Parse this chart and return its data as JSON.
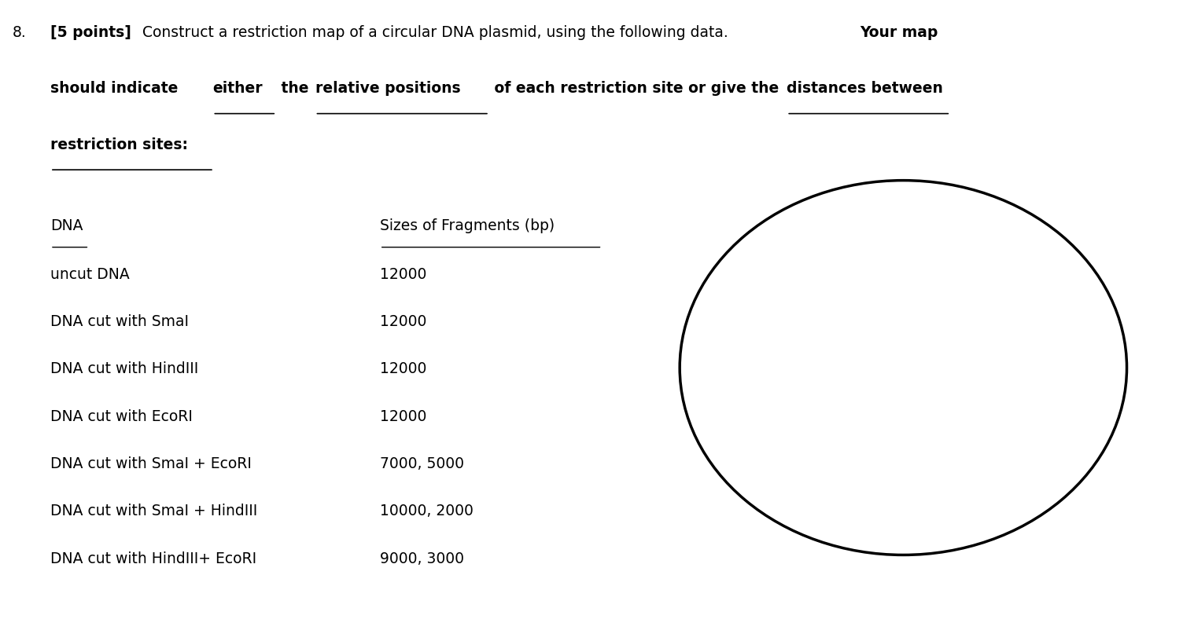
{
  "background_color": "#ffffff",
  "text_color": "#000000",
  "font_family": "DejaVu Sans",
  "body_fontsize": 13.5,
  "circle_color": "#000000",
  "circle_linewidth": 2.5,
  "rows": [
    [
      "uncut DNA",
      "12000"
    ],
    [
      "DNA cut with SmaI",
      "12000"
    ],
    [
      "DNA cut with HindIII",
      "12000"
    ],
    [
      "DNA cut with EcoRI",
      "12000"
    ],
    [
      "DNA cut with SmaI + EcoRI",
      "7000, 5000"
    ],
    [
      "DNA cut with SmaI + HindIII",
      "10000, 2000"
    ],
    [
      "DNA cut with HindIII+ EcoRI",
      "9000, 3000"
    ]
  ]
}
